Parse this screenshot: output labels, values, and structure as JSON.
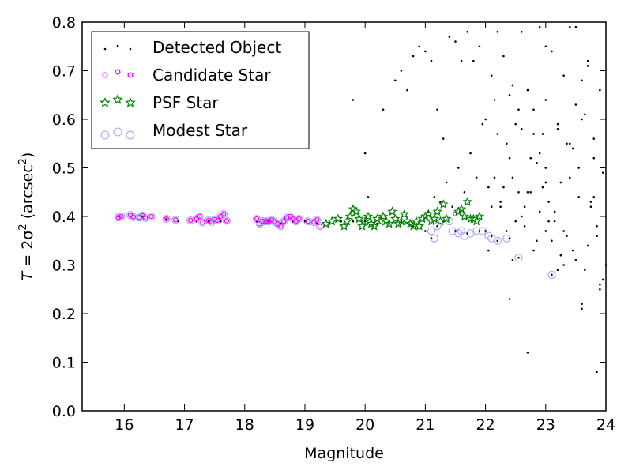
{
  "chart_data": {
    "type": "scatter",
    "title": "",
    "xlabel": "Magnitude",
    "ylabel": {
      "prefix": "T",
      "eq": " = 2σ",
      "sup1": "2",
      "mid": " (arcsec",
      "sup2": "2",
      "end": ")"
    },
    "xlim": [
      15.3,
      24
    ],
    "ylim": [
      0.0,
      0.8
    ],
    "xticks": [
      16,
      17,
      18,
      19,
      20,
      21,
      22,
      23,
      24
    ],
    "yticks": [
      0.0,
      0.1,
      0.2,
      0.3,
      0.4,
      0.5,
      0.6,
      0.7,
      0.8
    ],
    "grid": false,
    "legend_position": "top-left",
    "colors": {
      "detected": "#000000",
      "candidate": "#ff00ff",
      "psf": "#008000",
      "modest": "#aaaaff"
    },
    "series": [
      {
        "name": "Detected Object",
        "marker": "dot",
        "x": [
          15.9,
          16.1,
          16.3,
          16.7,
          16.9,
          17.2,
          17.4,
          17.6,
          18.2,
          18.4,
          18.6,
          18.8,
          19.0,
          19.2,
          19.4,
          19.6,
          19.8,
          20.0,
          20.2,
          20.4,
          20.6,
          20.8,
          21.0,
          21.1,
          21.2,
          21.3,
          21.5,
          21.7,
          21.9,
          22.0,
          22.1,
          22.2,
          22.4,
          22.55,
          23.1,
          19.8,
          20.0,
          20.05,
          20.3,
          20.5,
          20.6,
          20.7,
          20.8,
          20.9,
          21.0,
          21.1,
          21.2,
          21.3,
          21.4,
          21.5,
          21.6,
          21.7,
          21.8,
          21.9,
          21.05,
          21.15,
          21.25,
          21.35,
          21.45,
          21.55,
          21.65,
          21.75,
          21.85,
          21.95,
          22.05,
          22.15,
          22.25,
          22.35,
          22.45,
          22.55,
          22.65,
          22.75,
          22.85,
          22.95,
          23.05,
          23.15,
          23.25,
          23.35,
          23.45,
          23.55,
          23.65,
          23.75,
          23.85,
          23.95,
          22.1,
          22.3,
          22.5,
          22.7,
          22.9,
          23.1,
          23.3,
          23.5,
          23.7,
          23.9,
          22.2,
          22.4,
          22.6,
          22.8,
          23.0,
          23.2,
          23.4,
          23.6,
          23.8,
          22.05,
          22.25,
          22.45,
          22.65,
          22.85,
          23.05,
          23.25,
          23.45,
          23.65,
          23.85,
          22.15,
          22.35,
          22.55,
          22.75,
          22.95,
          23.15,
          23.35,
          23.55,
          23.75,
          23.95,
          22.0,
          22.2,
          22.4,
          22.6,
          22.8,
          23.0,
          23.2,
          23.4,
          23.6,
          23.8,
          22.1,
          22.3,
          22.5,
          22.7,
          22.9,
          23.1,
          23.3,
          23.5,
          23.7,
          23.9,
          22.7,
          23.0,
          23.3,
          23.6,
          23.9,
          22.4,
          22.8,
          23.2,
          23.6,
          24.0,
          22.6,
          23.0,
          23.4,
          23.8,
          22.9,
          23.5,
          23.85,
          22.45,
          23.0,
          23.7
        ],
        "y": [
          0.4,
          0.4,
          0.4,
          0.395,
          0.39,
          0.39,
          0.39,
          0.39,
          0.39,
          0.39,
          0.385,
          0.39,
          0.39,
          0.385,
          0.385,
          0.39,
          0.39,
          0.39,
          0.385,
          0.385,
          0.39,
          0.38,
          0.37,
          0.355,
          0.38,
          0.39,
          0.37,
          0.365,
          0.37,
          0.37,
          0.36,
          0.35,
          0.355,
          0.315,
          0.28,
          0.64,
          0.53,
          0.44,
          0.62,
          0.68,
          0.7,
          0.66,
          0.73,
          0.75,
          0.74,
          0.72,
          0.62,
          0.56,
          0.77,
          0.76,
          0.72,
          0.78,
          0.72,
          0.75,
          0.41,
          0.44,
          0.43,
          0.47,
          0.42,
          0.5,
          0.45,
          0.53,
          0.48,
          0.59,
          0.46,
          0.64,
          0.42,
          0.55,
          0.48,
          0.62,
          0.38,
          0.45,
          0.51,
          0.57,
          0.43,
          0.39,
          0.47,
          0.36,
          0.54,
          0.44,
          0.61,
          0.42,
          0.38,
          0.49,
          0.69,
          0.73,
          0.59,
          0.66,
          0.53,
          0.74,
          0.69,
          0.63,
          0.71,
          0.66,
          0.78,
          0.52,
          0.78,
          0.57,
          0.75,
          0.59,
          0.79,
          0.68,
          0.56,
          0.33,
          0.43,
          0.31,
          0.42,
          0.35,
          0.39,
          0.32,
          0.33,
          0.29,
          0.36,
          0.48,
          0.37,
          0.45,
          0.52,
          0.46,
          0.41,
          0.55,
          0.5,
          0.43,
          0.27,
          0.6,
          0.57,
          0.65,
          0.58,
          0.62,
          0.5,
          0.58,
          0.48,
          0.6,
          0.52,
          0.42,
          0.46,
          0.39,
          0.45,
          0.41,
          0.35,
          0.37,
          0.31,
          0.34,
          0.25,
          0.12,
          0.37,
          0.3,
          0.22,
          0.26,
          0.23,
          0.33,
          0.29,
          0.21,
          0.3,
          0.4,
          0.47,
          0.55,
          0.44,
          0.79,
          0.79,
          0.08,
          0.67,
          0.64,
          0.72
        ]
      },
      {
        "name": "Candidate Star",
        "marker": "circle-small",
        "x": [
          15.9,
          15.95,
          16.1,
          16.15,
          16.25,
          16.3,
          16.35,
          16.45,
          16.7,
          16.85,
          17.1,
          17.2,
          17.25,
          17.3,
          17.4,
          17.45,
          17.5,
          17.55,
          17.6,
          17.65,
          17.7,
          18.2,
          18.25,
          18.3,
          18.35,
          18.4,
          18.45,
          18.5,
          18.55,
          18.6,
          18.65,
          18.7,
          18.75,
          18.8,
          18.85,
          18.9,
          19.05,
          19.15,
          19.2,
          19.25,
          21.5
        ],
        "y": [
          0.398,
          0.4,
          0.403,
          0.399,
          0.398,
          0.402,
          0.397,
          0.4,
          0.395,
          0.393,
          0.392,
          0.395,
          0.4,
          0.388,
          0.392,
          0.389,
          0.394,
          0.392,
          0.4,
          0.405,
          0.391,
          0.395,
          0.385,
          0.39,
          0.39,
          0.39,
          0.393,
          0.389,
          0.385,
          0.38,
          0.39,
          0.397,
          0.4,
          0.395,
          0.39,
          0.395,
          0.39,
          0.388,
          0.393,
          0.38,
          0.405
        ]
      },
      {
        "name": "PSF Star",
        "marker": "star",
        "x": [
          19.35,
          19.45,
          19.55,
          19.65,
          19.7,
          19.75,
          19.8,
          19.85,
          19.9,
          19.95,
          20.0,
          20.05,
          20.1,
          20.15,
          20.2,
          20.25,
          20.3,
          20.35,
          20.4,
          20.45,
          20.5,
          20.55,
          20.6,
          20.65,
          20.7,
          20.75,
          20.8,
          20.85,
          20.9,
          20.95,
          21.0,
          21.05,
          21.1,
          21.15,
          21.2,
          21.25,
          21.3,
          21.35,
          21.55,
          21.6,
          21.65,
          21.7,
          21.75,
          21.8,
          21.85,
          21.9
        ],
        "y": [
          0.385,
          0.39,
          0.395,
          0.38,
          0.39,
          0.4,
          0.415,
          0.41,
          0.395,
          0.38,
          0.39,
          0.4,
          0.385,
          0.38,
          0.395,
          0.39,
          0.4,
          0.39,
          0.385,
          0.41,
          0.395,
          0.385,
          0.39,
          0.405,
          0.39,
          0.385,
          0.38,
          0.39,
          0.38,
          0.395,
          0.4,
          0.405,
          0.39,
          0.395,
          0.41,
          0.39,
          0.425,
          0.395,
          0.41,
          0.415,
          0.4,
          0.43,
          0.395,
          0.395,
          0.39,
          0.4
        ]
      },
      {
        "name": "Modest Star",
        "marker": "circle-open",
        "x": [
          15.9,
          15.95,
          16.1,
          16.15,
          16.25,
          16.3,
          16.35,
          16.45,
          16.7,
          16.85,
          17.1,
          17.2,
          17.25,
          17.3,
          17.4,
          17.45,
          17.5,
          17.55,
          17.6,
          17.65,
          17.7,
          18.2,
          18.25,
          18.3,
          18.35,
          18.4,
          18.45,
          18.5,
          18.55,
          18.6,
          18.65,
          18.7,
          18.75,
          18.8,
          18.85,
          18.9,
          19.05,
          19.15,
          19.2,
          19.25,
          21.1,
          21.15,
          21.2,
          21.4,
          21.45,
          21.55,
          21.6,
          21.65,
          21.75,
          21.85,
          21.95,
          22.05,
          22.1,
          22.2,
          22.35,
          22.55,
          23.1
        ],
        "y": [
          0.398,
          0.4,
          0.403,
          0.399,
          0.398,
          0.402,
          0.397,
          0.4,
          0.395,
          0.393,
          0.392,
          0.395,
          0.4,
          0.388,
          0.392,
          0.389,
          0.394,
          0.392,
          0.4,
          0.405,
          0.391,
          0.395,
          0.385,
          0.39,
          0.39,
          0.39,
          0.393,
          0.389,
          0.385,
          0.38,
          0.39,
          0.397,
          0.4,
          0.395,
          0.39,
          0.395,
          0.39,
          0.388,
          0.393,
          0.38,
          0.37,
          0.355,
          0.38,
          0.39,
          0.37,
          0.365,
          0.37,
          0.36,
          0.365,
          0.37,
          0.37,
          0.36,
          0.355,
          0.35,
          0.355,
          0.315,
          0.28
        ]
      }
    ]
  }
}
